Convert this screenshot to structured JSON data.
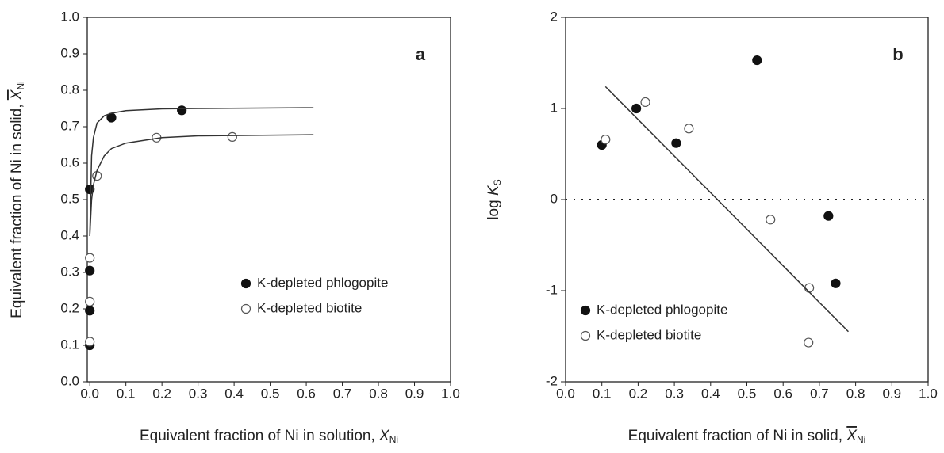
{
  "chart_data": [
    {
      "type": "scatter",
      "label": "a",
      "xlabel": "Equivalent fraction of Ni in solution, ",
      "xlabel_var": "X",
      "xlabel_sub": "Ni",
      "xlabel_bar": false,
      "ylabel": "Equivalent fraction of Ni in solid, ",
      "ylabel_var": "X",
      "ylabel_sub": "Ni",
      "ylabel_bar": true,
      "xlim": [
        -0.007,
        1.0
      ],
      "ylim": [
        0,
        1.0
      ],
      "xticks": [
        {
          "value": 0,
          "label": "0.0"
        },
        0.1,
        0.2,
        0.3,
        0.4,
        0.5,
        0.6,
        0.7,
        0.8,
        0.9,
        {
          "value": 1,
          "label": "1.0"
        }
      ],
      "yticks": [
        {
          "value": 0,
          "label": "0.0"
        },
        0.1,
        0.2,
        0.3,
        0.4,
        0.5,
        0.6,
        0.7,
        0.8,
        0.9,
        {
          "value": 1,
          "label": "1.0"
        }
      ],
      "legend": "right",
      "series": [
        {
          "name": "K-depleted phlogopite",
          "mode": "markers",
          "marker": "filled",
          "color": "#111111",
          "x": [
            0.0,
            0.0,
            0.0,
            0.0,
            0.06,
            0.255
          ],
          "values": [
            0.1,
            0.195,
            0.305,
            0.528,
            0.725,
            0.745
          ]
        },
        {
          "name": "K-depleted biotite",
          "mode": "markers",
          "marker": "open",
          "color": "#555555",
          "x": [
            0.0,
            0.0,
            0.0,
            0.02,
            0.185,
            0.395
          ],
          "values": [
            0.11,
            0.22,
            0.34,
            0.565,
            0.67,
            0.672
          ]
        },
        {
          "mode": "line",
          "color": "#333333",
          "x": [
            0.0,
            0.005,
            0.01,
            0.02,
            0.04,
            0.06,
            0.1,
            0.2,
            0.3,
            0.62
          ],
          "values": [
            0.4,
            0.62,
            0.67,
            0.71,
            0.73,
            0.737,
            0.744,
            0.749,
            0.75,
            0.752
          ]
        },
        {
          "mode": "line",
          "color": "#333333",
          "x": [
            0.0,
            0.005,
            0.01,
            0.02,
            0.04,
            0.06,
            0.1,
            0.2,
            0.3,
            0.62
          ],
          "values": [
            0.4,
            0.5,
            0.54,
            0.58,
            0.62,
            0.64,
            0.655,
            0.67,
            0.675,
            0.678
          ]
        }
      ]
    },
    {
      "type": "scatter",
      "label": "b",
      "xlabel": "Equivalent fraction of Ni in solid, ",
      "xlabel_var": "X",
      "xlabel_sub": "Ni",
      "xlabel_bar": true,
      "ylabel": "log ",
      "ylabel_var": "K",
      "ylabel_sub": "S",
      "ylabel_bar": false,
      "xlim": [
        0,
        1.0
      ],
      "ylim": [
        -2,
        2
      ],
      "xticks": [
        {
          "value": 0,
          "label": "0.0"
        },
        0.1,
        0.2,
        0.3,
        0.4,
        0.5,
        0.6,
        0.7,
        0.8,
        0.9,
        {
          "value": 1,
          "label": "1.0"
        }
      ],
      "yticks": [
        -2,
        -1,
        0,
        1,
        2
      ],
      "hline": 0,
      "legend": "lower left",
      "series": [
        {
          "name": "K-depleted phlogopite",
          "mode": "markers",
          "marker": "filled",
          "color": "#111111",
          "x": [
            0.1,
            0.195,
            0.305,
            0.528,
            0.725,
            0.745
          ],
          "values": [
            0.6,
            1.0,
            0.62,
            1.53,
            -0.18,
            -0.92
          ]
        },
        {
          "name": "K-depleted biotite",
          "mode": "markers",
          "marker": "open",
          "color": "#555555",
          "x": [
            0.11,
            0.22,
            0.34,
            0.565,
            0.672,
            0.67
          ],
          "values": [
            0.66,
            1.07,
            0.78,
            -0.22,
            -0.97,
            -1.57
          ]
        },
        {
          "mode": "line",
          "color": "#333333",
          "x": [
            0.11,
            0.78
          ],
          "values": [
            1.24,
            -1.45
          ]
        }
      ]
    }
  ]
}
